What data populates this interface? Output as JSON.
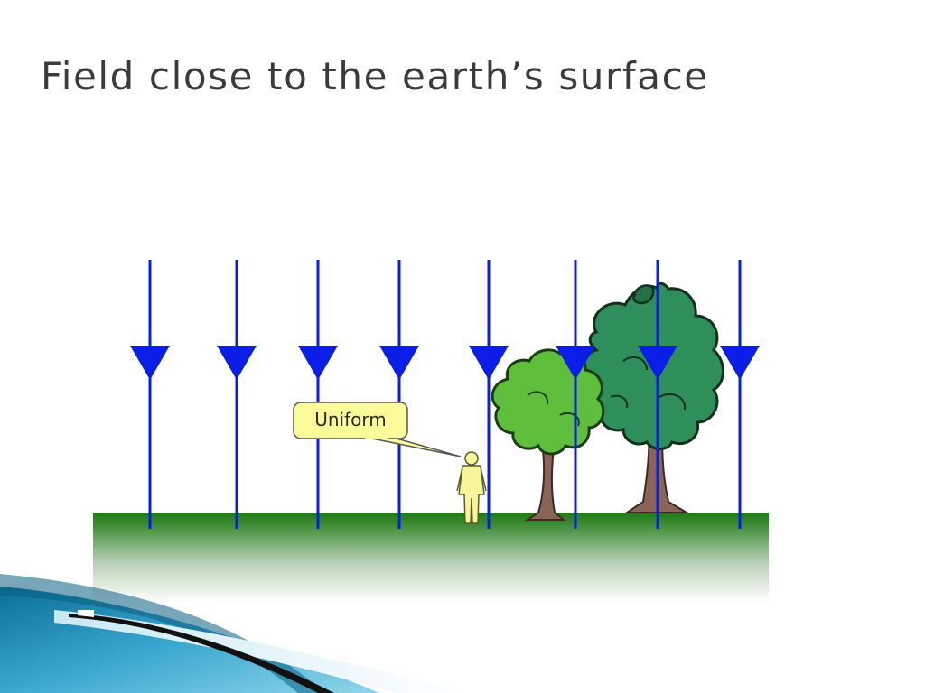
{
  "slide": {
    "title": "Field close to the earth’s surface"
  },
  "diagram": {
    "callout": {
      "label": "Uniform"
    },
    "field_lines": {
      "count": 8,
      "direction": "downward",
      "color": "#0a1ee8"
    },
    "ground": {
      "color_top": "#1f7a14",
      "color_bottom": "#ffffff"
    },
    "trees": {
      "count": 2,
      "foliage_light": "#5fbf3c",
      "foliage_dark": "#2f8f5a",
      "trunk": "#8b6458"
    },
    "person": {
      "color": "#f7f59a"
    }
  },
  "decor": {
    "swoosh_colors": [
      "#0a6f97",
      "#4cb7d8",
      "#111111"
    ]
  }
}
